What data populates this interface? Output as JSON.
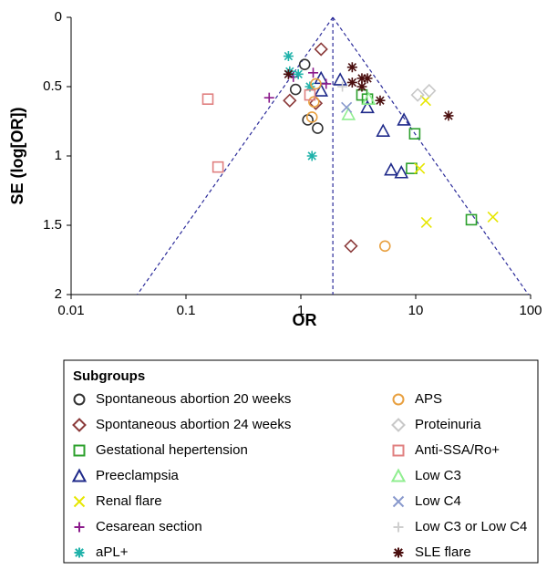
{
  "chart_data": {
    "type": "scatter",
    "x_label": "OR",
    "y_label": "SE (log[OR])",
    "xscale": "log",
    "xlim": [
      0.01,
      100
    ],
    "xticks": [
      0.01,
      0.1,
      1,
      10,
      100
    ],
    "ylim": [
      0,
      2
    ],
    "yticks": [
      0,
      0.5,
      1,
      1.5,
      2
    ],
    "y_inverted": true,
    "pooled_or": 1.9,
    "legend_title": "Subgroups",
    "legend": "bottom",
    "series": [
      {
        "name": "Spontaneous abortion 20 weeks",
        "color": "#333333",
        "marker": "circle",
        "x": [
          0.9,
          1.08,
          1.4,
          1.15
        ],
        "values": [
          0.52,
          0.34,
          0.8,
          0.74
        ]
      },
      {
        "name": "Spontaneous abortion 24 weeks",
        "color": "#8b3a3a",
        "marker": "diamond",
        "x": [
          1.5,
          1.35,
          0.8,
          2.73
        ],
        "values": [
          0.23,
          0.62,
          0.6,
          1.65
        ]
      },
      {
        "name": "Gestational hepertension",
        "color": "#2ca02c",
        "marker": "square",
        "x": [
          3.8,
          3.4,
          9.8,
          9.2,
          30.5
        ],
        "values": [
          0.59,
          0.56,
          0.84,
          1.09,
          1.46
        ]
      },
      {
        "name": "Preeclampsia",
        "color": "#1f2a8a",
        "marker": "triangle",
        "x": [
          1.5,
          1.5,
          2.2,
          3.8,
          5.2,
          7.9,
          6.1,
          7.5
        ],
        "values": [
          0.53,
          0.44,
          0.45,
          0.65,
          0.82,
          0.74,
          1.1,
          1.12
        ]
      },
      {
        "name": "Renal flare",
        "color": "#e6e600",
        "marker": "x",
        "x": [
          12.2,
          10.8,
          12.4,
          47
        ],
        "values": [
          0.6,
          1.09,
          1.48,
          1.44
        ]
      },
      {
        "name": "Cesarean section",
        "color": "#8b1a8b",
        "marker": "plus",
        "x": [
          0.53,
          1.28,
          1.66,
          0.86
        ],
        "values": [
          0.58,
          0.4,
          0.48,
          0.43
        ]
      },
      {
        "name": "aPL+",
        "color": "#20b2aa",
        "marker": "asterisk",
        "x": [
          0.78,
          0.8,
          0.95,
          1.25,
          1.2
        ],
        "values": [
          0.28,
          0.39,
          0.41,
          1.0,
          0.5
        ]
      },
      {
        "name": "APS",
        "color": "#e8a040",
        "marker": "circle",
        "x": [
          1.35,
          1.25,
          1.3,
          5.4
        ],
        "values": [
          0.48,
          0.72,
          0.61,
          1.65
        ]
      },
      {
        "name": "Proteinuria",
        "color": "#c8c8c8",
        "marker": "diamond",
        "x": [
          10.4,
          13.1
        ],
        "values": [
          0.56,
          0.53
        ]
      },
      {
        "name": "Anti-SSA/Ro+",
        "color": "#e08080",
        "marker": "square",
        "x": [
          0.155,
          0.19,
          1.2
        ],
        "values": [
          0.59,
          1.08,
          0.56
        ]
      },
      {
        "name": "Low C3",
        "color": "#90ee90",
        "marker": "triangle",
        "x": [
          2.6,
          3.9
        ],
        "values": [
          0.7,
          0.59
        ]
      },
      {
        "name": "Low C4",
        "color": "#8899cc",
        "marker": "x",
        "x": [
          2.5
        ],
        "values": [
          0.65
        ]
      },
      {
        "name": "Low C3 or Low C4",
        "color": "#cfcfcf",
        "marker": "plus",
        "x": [
          2.3
        ],
        "values": [
          0.5
        ]
      },
      {
        "name": "SLE flare",
        "color": "#4a0e0e",
        "marker": "asterisk",
        "x": [
          0.78,
          2.8,
          3.4,
          3.8,
          3.4,
          4.9,
          19.3,
          2.8
        ],
        "values": [
          0.41,
          0.36,
          0.44,
          0.44,
          0.5,
          0.6,
          0.71,
          0.47
        ]
      }
    ]
  }
}
